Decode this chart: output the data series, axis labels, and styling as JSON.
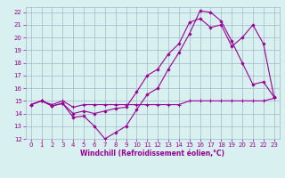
{
  "xlabel": "Windchill (Refroidissement éolien,°C)",
  "background_color": "#d8f0f0",
  "grid_color": "#a0b8c8",
  "line_color": "#990099",
  "xlim": [
    -0.5,
    23.5
  ],
  "ylim": [
    12,
    22.4
  ],
  "xticks": [
    0,
    1,
    2,
    3,
    4,
    5,
    6,
    7,
    8,
    9,
    10,
    11,
    12,
    13,
    14,
    15,
    16,
    17,
    18,
    19,
    20,
    21,
    22,
    23
  ],
  "yticks": [
    12,
    13,
    14,
    15,
    16,
    17,
    18,
    19,
    20,
    21,
    22
  ],
  "curve1_x": [
    0,
    1,
    2,
    3,
    4,
    5,
    6,
    7,
    8,
    9,
    10,
    11,
    12,
    13,
    14,
    15,
    16,
    17,
    18,
    19,
    20,
    21,
    22,
    23
  ],
  "curve1_y": [
    14.7,
    15.0,
    14.7,
    15.0,
    14.5,
    14.7,
    14.7,
    14.7,
    14.7,
    14.7,
    14.7,
    14.7,
    14.7,
    14.7,
    14.7,
    15.0,
    15.0,
    15.0,
    15.0,
    15.0,
    15.0,
    15.0,
    15.0,
    15.2
  ],
  "curve2_x": [
    0,
    1,
    2,
    3,
    4,
    5,
    6,
    7,
    8,
    9,
    10,
    11,
    12,
    13,
    14,
    15,
    16,
    17,
    18,
    19,
    20,
    21,
    22,
    23
  ],
  "curve2_y": [
    14.7,
    15.0,
    14.6,
    14.8,
    13.7,
    13.8,
    13.0,
    12.0,
    12.5,
    13.0,
    14.3,
    15.5,
    16.0,
    17.5,
    18.8,
    20.3,
    22.1,
    22.0,
    21.3,
    19.7,
    18.0,
    16.3,
    16.5,
    15.3
  ],
  "curve3_x": [
    0,
    1,
    2,
    3,
    4,
    5,
    6,
    7,
    8,
    9,
    10,
    11,
    12,
    13,
    14,
    15,
    16,
    17,
    18,
    19,
    20,
    21,
    22,
    23
  ],
  "curve3_y": [
    14.7,
    15.0,
    14.6,
    14.8,
    14.0,
    14.2,
    14.0,
    14.2,
    14.4,
    14.5,
    15.7,
    17.0,
    17.5,
    18.7,
    19.5,
    21.2,
    21.5,
    20.8,
    21.0,
    19.3,
    20.0,
    21.0,
    19.5,
    15.3
  ],
  "tick_fontsize": 5,
  "xlabel_fontsize": 5.5
}
